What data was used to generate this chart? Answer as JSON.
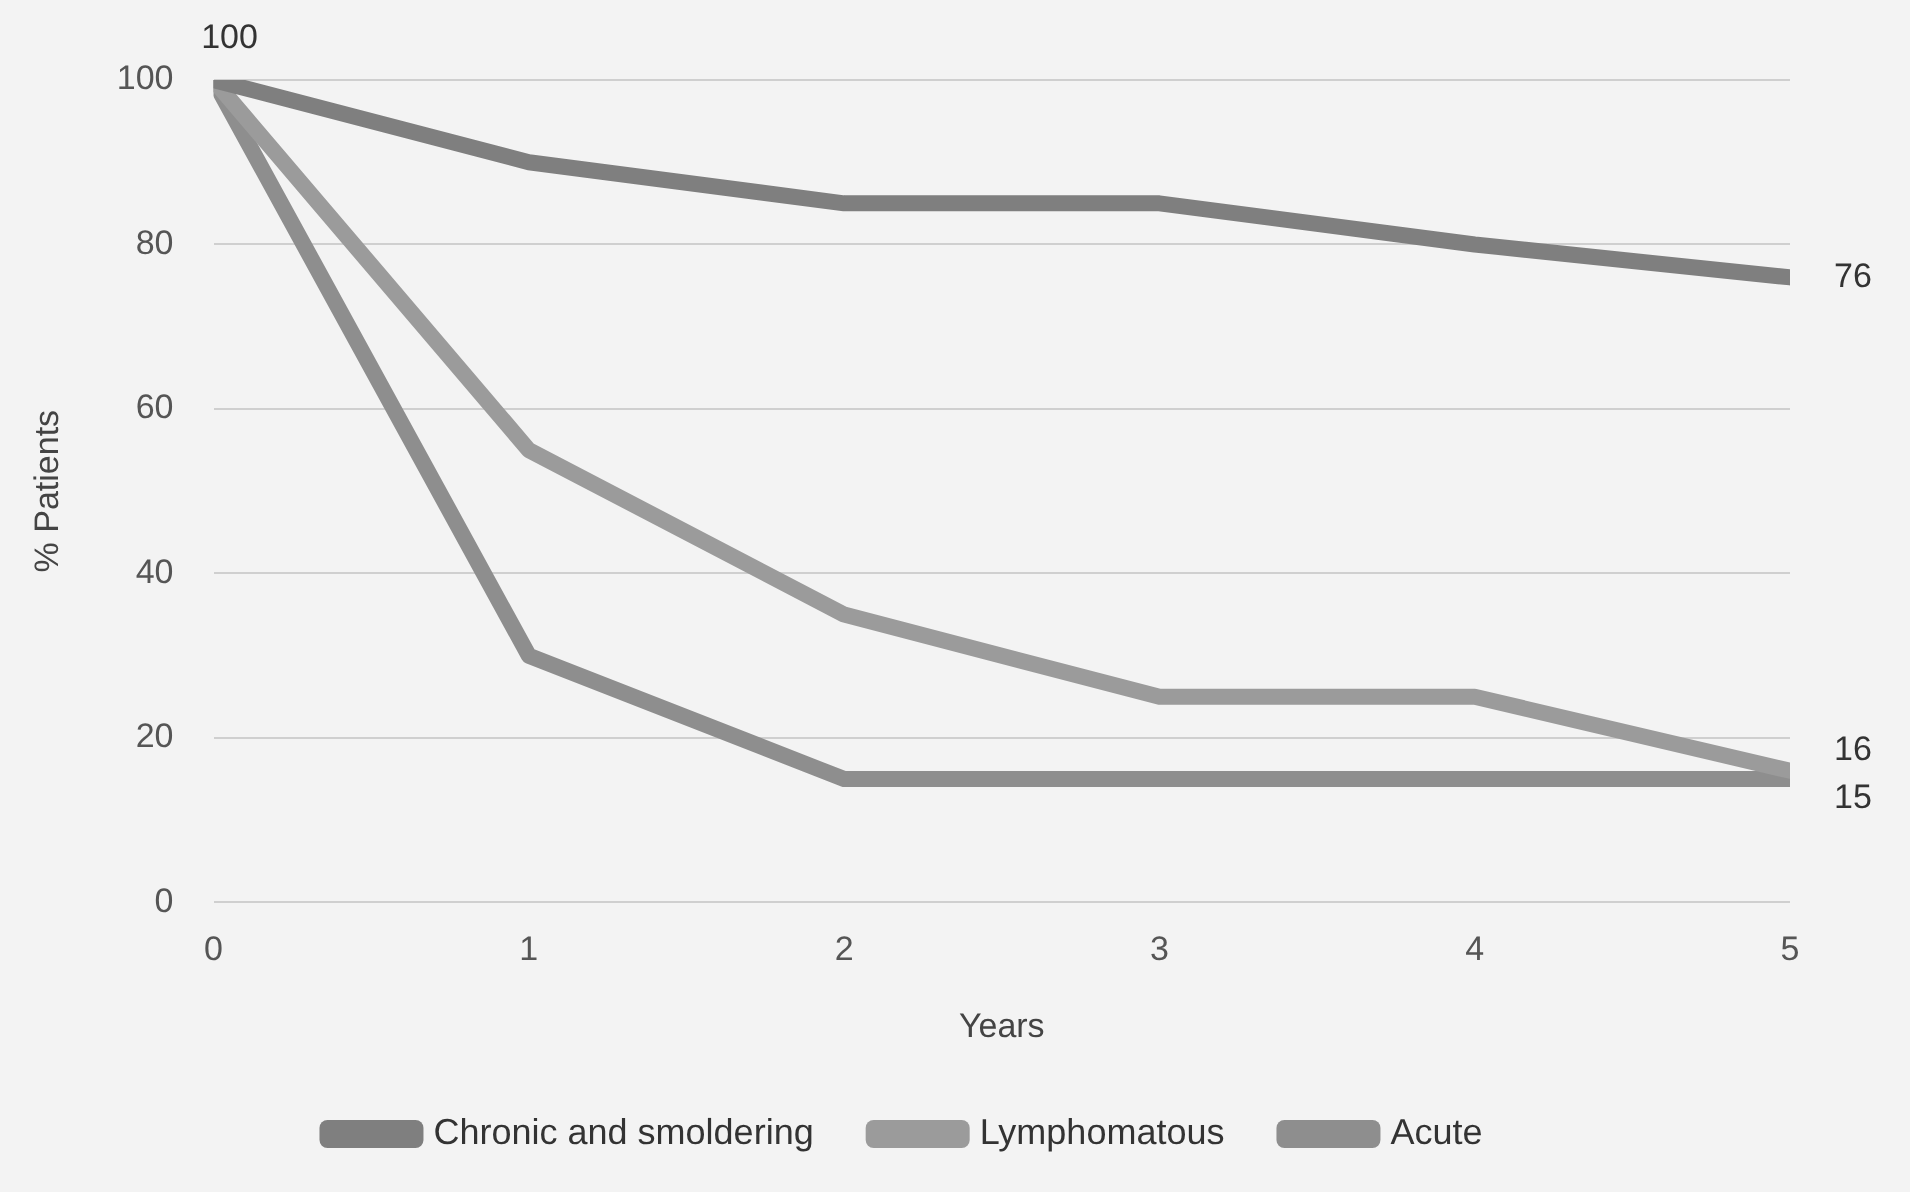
{
  "chart_data": {
    "type": "line",
    "xlabel": "Years",
    "ylabel": "% Patients",
    "x": [
      0,
      1,
      2,
      3,
      4,
      5
    ],
    "xlim": [
      0,
      5
    ],
    "xticks": [
      0,
      1,
      2,
      3,
      4,
      5
    ],
    "ylim": [
      0,
      100
    ],
    "yticks": [
      0,
      20,
      40,
      60,
      80,
      100
    ],
    "grid": "y",
    "legend": "bottom",
    "marker": "none",
    "line_style": "solid",
    "series": [
      {
        "name": "Chronic and smoldering",
        "color": "#7f7f7f",
        "values": [
          100,
          90,
          85,
          85,
          80,
          76
        ],
        "value_labels": [
          "100",
          null,
          null,
          null,
          null,
          "76"
        ]
      },
      {
        "name": "Lymphomatous",
        "color": "#9b9b9b",
        "values": [
          100,
          55,
          35,
          25,
          25,
          16
        ],
        "value_labels": [
          null,
          null,
          null,
          null,
          null,
          "16"
        ]
      },
      {
        "name": "Acute",
        "color": "#8e8e8e",
        "values": [
          100,
          30,
          15,
          15,
          15,
          15
        ],
        "value_labels": [
          null,
          null,
          null,
          null,
          null,
          "15"
        ]
      }
    ]
  }
}
